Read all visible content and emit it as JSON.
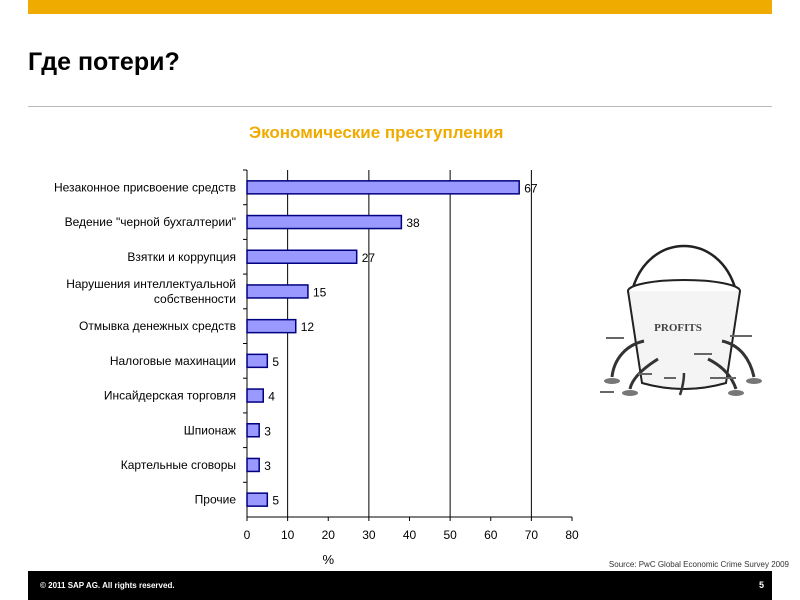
{
  "slide": {
    "title": "Где потери?",
    "source": "Source: PwC Global Economic Crime Survey 2009"
  },
  "footer": {
    "copyright": "©  2011 SAP AG. All rights reserved.",
    "page_number": "5"
  },
  "illustration": {
    "label": "PROFITS"
  },
  "colors": {
    "accent": "#f0ab00",
    "bar_fill": "#9999ff",
    "bar_stroke": "#000080",
    "footer_bg": "#000000"
  },
  "chart_data": {
    "type": "bar",
    "orientation": "horizontal",
    "title": "Экономические преступления",
    "xlabel": "%",
    "ylabel": "",
    "xlim": [
      0,
      80
    ],
    "xticks": [
      0,
      10,
      20,
      30,
      40,
      50,
      60,
      70,
      80
    ],
    "grid": "vertical major lines",
    "categories": [
      [
        "Незаконное присвоение средств"
      ],
      [
        "Ведение \"черной бухгалтерии\""
      ],
      [
        "Взятки и коррупция"
      ],
      [
        "Нарушения интеллектуальной",
        "собственности"
      ],
      [
        "Отмывка денежных средств"
      ],
      [
        "Налоговые махинации"
      ],
      [
        "Инсайдерская торговля"
      ],
      [
        "Шпионаж"
      ],
      [
        "Картельные сговоры"
      ],
      [
        "Прочие"
      ]
    ],
    "values": [
      67,
      38,
      27,
      15,
      12,
      5,
      4,
      3,
      3,
      5
    ]
  }
}
